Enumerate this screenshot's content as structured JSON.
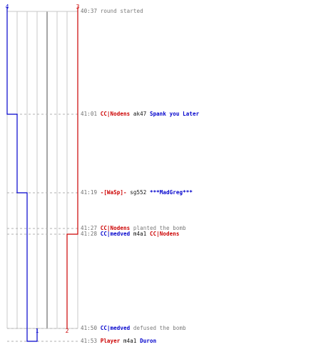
{
  "colors": {
    "blue_team": "#0000cc",
    "red_team": "#cc0000",
    "grid": "#c8c8c8",
    "center_line": "#808080",
    "dash": "#b0b0b0",
    "time": "#6e6e6e"
  },
  "score_labels": {
    "blue_start": "4",
    "red_start": "3",
    "blue_end": "1",
    "red_end": "2"
  },
  "events": [
    {
      "time": "40:37",
      "parts": [
        {
          "text": "round started",
          "color": "gray"
        }
      ]
    },
    {
      "time": "41:01",
      "parts": [
        {
          "text": "CC|Nodens",
          "color": "red",
          "name": true
        },
        {
          "text": " ak47 ",
          "color": "black"
        },
        {
          "text": "Spank you Later",
          "color": "blue",
          "name": true
        }
      ]
    },
    {
      "time": "41:19",
      "parts": [
        {
          "text": "-[WaSp]-",
          "color": "red",
          "name": true
        },
        {
          "text": " sg552 ",
          "color": "black"
        },
        {
          "text": "***MadGreg***",
          "color": "blue",
          "name": true
        }
      ]
    },
    {
      "time": "41:27",
      "parts": [
        {
          "text": "CC|Nodens",
          "color": "red",
          "name": true
        },
        {
          "text": " planted the bomb",
          "color": "gray"
        }
      ]
    },
    {
      "time": "41:28",
      "parts": [
        {
          "text": "CC|medved",
          "color": "blue",
          "name": true
        },
        {
          "text": " m4a1 ",
          "color": "black"
        },
        {
          "text": "CC|Nodens",
          "color": "red",
          "name": true
        }
      ]
    },
    {
      "time": "41:50",
      "parts": [
        {
          "text": "CC|medved",
          "color": "blue",
          "name": true
        },
        {
          "text": " defused the bomb",
          "color": "gray"
        }
      ]
    },
    {
      "time": "41:53",
      "parts": [
        {
          "text": "Player",
          "color": "red",
          "name": true
        },
        {
          "text": " m4a1 ",
          "color": "black"
        },
        {
          "text": "Duron",
          "color": "blue",
          "name": true
        }
      ]
    }
  ]
}
